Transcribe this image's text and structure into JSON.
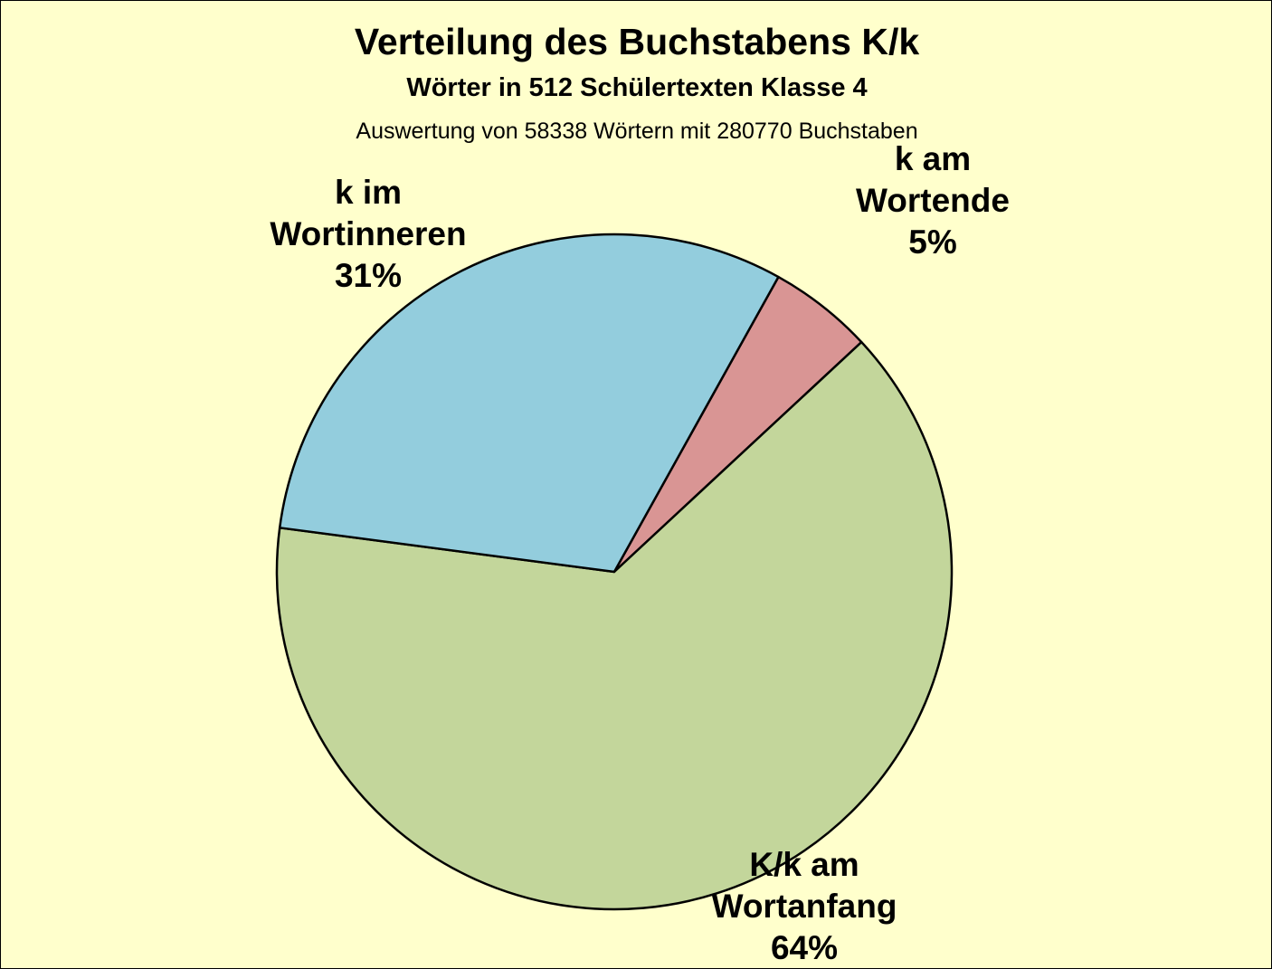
{
  "chart_data": {
    "type": "pie",
    "title": "Verteilung des Buchstabens K/k",
    "subtitle": "Wörter in 512 Schülertexten Klasse 4",
    "note": "Auswertung von 58338 Wörtern mit 280770 Buchstaben",
    "slices": [
      {
        "lines": [
          "k am",
          "Wortende"
        ],
        "value_label": "5%",
        "value": 5,
        "color": "#d99594"
      },
      {
        "lines": [
          "K/k am",
          "Wortanfang"
        ],
        "value_label": "64%",
        "value": 64,
        "color": "#c3d69b"
      },
      {
        "lines": [
          "k im",
          "Wortinneren"
        ],
        "value_label": "31%",
        "value": 31,
        "color": "#93cddd"
      }
    ],
    "background_color": "#ffffcc",
    "grid": false,
    "legend": "none"
  }
}
